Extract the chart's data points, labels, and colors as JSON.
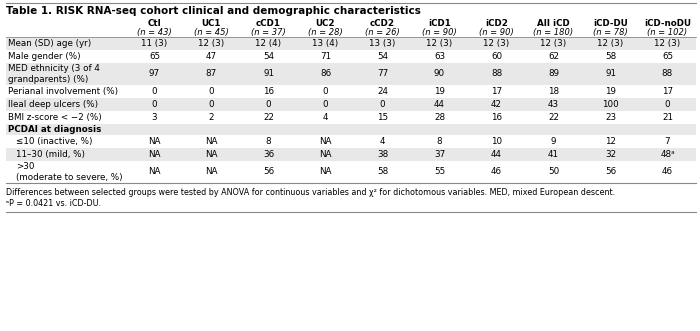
{
  "title": "Table 1. RISK RNA-seq cohort clinical and demographic characteristics",
  "col_headers_line1": [
    "Ctl",
    "UC1",
    "cCD1",
    "UC2",
    "cCD2",
    "iCD1",
    "iCD2",
    "All iCD",
    "iCD-DU",
    "iCD-noDU"
  ],
  "col_headers_line2": [
    "(n = 43)",
    "(n = 45)",
    "(n = 37)",
    "(n = 28)",
    "(n = 26)",
    "(n = 90)",
    "(n = 90)",
    "(n = 180)",
    "(n = 78)",
    "(n = 102)"
  ],
  "row_labels": [
    "Mean (SD) age (yr)",
    "Male gender (%)",
    "MED ethnicity (3 of 4\ngrandparents) (%)",
    "Perianal involvement (%)",
    "Ileal deep ulcers (%)",
    "BMI z-score < −2 (%)",
    "PCDAI at diagnosis",
    "≤10 (inactive, %)",
    "11–30 (mild, %)",
    ">30\n(moderate to severe, %)"
  ],
  "row_label_bold": [
    false,
    false,
    false,
    false,
    false,
    false,
    true,
    false,
    false,
    false
  ],
  "row_label_indent": [
    false,
    false,
    false,
    false,
    false,
    false,
    false,
    true,
    true,
    true
  ],
  "data": [
    [
      "11 (3)",
      "12 (3)",
      "12 (4)",
      "13 (4)",
      "13 (3)",
      "12 (3)",
      "12 (3)",
      "12 (3)",
      "12 (3)",
      "12 (3)"
    ],
    [
      "65",
      "47",
      "54",
      "71",
      "54",
      "63",
      "60",
      "62",
      "58",
      "65"
    ],
    [
      "97",
      "87",
      "91",
      "86",
      "77",
      "90",
      "88",
      "89",
      "91",
      "88"
    ],
    [
      "0",
      "0",
      "16",
      "0",
      "24",
      "19",
      "17",
      "18",
      "19",
      "17"
    ],
    [
      "0",
      "0",
      "0",
      "0",
      "0",
      "44",
      "42",
      "43",
      "100",
      "0"
    ],
    [
      "3",
      "2",
      "22",
      "4",
      "15",
      "28",
      "16",
      "22",
      "23",
      "21"
    ],
    [
      "",
      "",
      "",
      "",
      "",
      "",
      "",
      "",
      "",
      ""
    ],
    [
      "NA",
      "NA",
      "8",
      "NA",
      "4",
      "8",
      "10",
      "9",
      "12",
      "7"
    ],
    [
      "NA",
      "NA",
      "36",
      "NA",
      "38",
      "37",
      "44",
      "41",
      "32",
      "48ᵃ"
    ],
    [
      "NA",
      "NA",
      "56",
      "NA",
      "58",
      "55",
      "46",
      "50",
      "56",
      "46"
    ]
  ],
  "shaded_rows": [
    0,
    2,
    4,
    6,
    8
  ],
  "footnotes": [
    "Differences between selected groups were tested by ANOVA for continuous variables and χ² for dichotomous variables. MED, mixed European descent.",
    "ᵃP = 0.0421 vs. iCD-DU."
  ],
  "bg_shaded": "#e8e8e8",
  "bg_white": "#ffffff",
  "text_color": "#000000",
  "figw": 7.0,
  "figh": 3.31,
  "dpi": 100
}
